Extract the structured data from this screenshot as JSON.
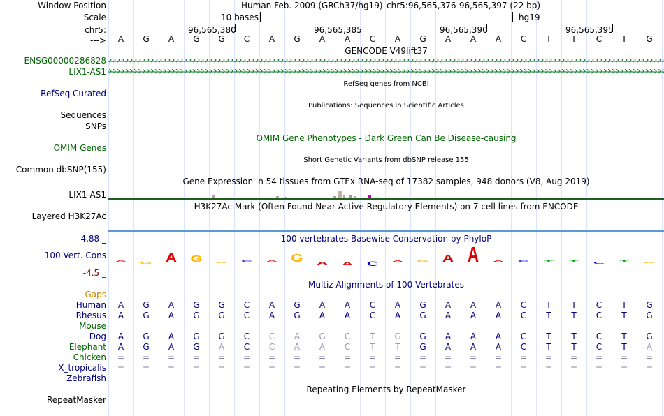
{
  "labels": {
    "window_position": "Window Position",
    "scale": "Scale",
    "chrom": "chr5:",
    "strand": "--->",
    "gene1": "ENSG00000286828",
    "gene2": "LIX1-AS1",
    "refseq": "RefSeq Curated",
    "sequences": "Sequences",
    "snps": "SNPs",
    "omim": "OMIM Genes",
    "dbsnp": "Common dbSNP(155)",
    "gtex": "LIX1-AS1",
    "layered": "Layered H3K27Ac",
    "cons_max": "4.88 _",
    "cons": "100 Vert. Cons",
    "cons_min": "-4.5 _",
    "gaps": "Gaps",
    "human": "Human",
    "rhesus": "Rhesus",
    "mouse": "Mouse",
    "dog": "Dog",
    "elephant": "Elephant",
    "chicken": "Chicken",
    "xtrop": "X_tropicalis",
    "zebrafish": "Zebrafish",
    "repeatmasker": "RepeatMasker"
  },
  "header": {
    "assembly": "Human Feb. 2009 (GRCh37/hg19)",
    "position": "chr5:96,565,376-96,565,397 (22 bp)",
    "scale_text": "10 bases",
    "scale_db": "hg19",
    "ticks": [
      "96,565,380",
      "96,565,385",
      "96,565,390",
      "96,565,395"
    ]
  },
  "bases": [
    "A",
    "G",
    "A",
    "G",
    "G",
    "C",
    "A",
    "G",
    "A",
    "A",
    "C",
    "A",
    "G",
    "A",
    "A",
    "A",
    "C",
    "T",
    "T",
    "C",
    "T",
    "G"
  ],
  "titles": {
    "gencode": "GENCODE V49lift37",
    "refseq": "RefSeq genes from NCBI",
    "publications": "Publications: Sequences in Scientific Articles",
    "omim": "OMIM Gene Phenotypes - Dark Green Can Be Disease-causing",
    "dbsnp": "Short Genetic Variants from dbSNP release 155",
    "gtex": "Gene Expression in 54 tissues from GTEx RNA-seq of 17382 samples, 948 donors (V8, Aug 2019)",
    "h3k27ac": "H3K27Ac Mark (Often Found Near Active Regulatory Elements) on 7 cell lines from ENCODE",
    "phylop": "100 vertebrates Basewise Conservation by PhyloP",
    "multiz": "Multiz Alignments of 100 Vertebrates",
    "repeatmasker": "Repeating Elements by RepeatMasker"
  },
  "alignment": {
    "human": "AGAGGCAGAACAGAAACTTCTG",
    "rhesus": "AGAGGCAGAACAGAAACTTCTG",
    "dog": "AGAGGCCAGCTGGAAACTTCTG",
    "dog_dim": [
      0,
      0,
      0,
      0,
      0,
      0,
      1,
      1,
      1,
      1,
      1,
      1,
      0,
      0,
      0,
      0,
      0,
      0,
      0,
      0,
      0,
      0
    ],
    "elephant": "AGAGACCAACTTGAAACTTCTA",
    "elephant_dim": [
      0,
      0,
      0,
      0,
      1,
      0,
      1,
      1,
      1,
      1,
      1,
      1,
      0,
      0,
      0,
      0,
      0,
      0,
      0,
      0,
      0,
      1
    ],
    "chicken": "======================",
    "xtrop": "======================"
  },
  "conservation": {
    "letters": [
      "A",
      "G",
      "A",
      "G",
      "G",
      "C",
      "A",
      "G",
      "A",
      "A",
      "C",
      "A",
      "G",
      "A",
      "A",
      "A",
      "C",
      "T",
      "T",
      "C",
      "T",
      "G"
    ],
    "values": [
      0.1,
      -0.3,
      1.2,
      0.9,
      -0.1,
      0,
      0.1,
      1.1,
      -0.4,
      -0.5,
      -0.6,
      0.1,
      0,
      1.0,
      2.1,
      0,
      0,
      0.05,
      0.1,
      -0.3,
      0,
      -0.2
    ]
  },
  "colors": {
    "label_blue": "#000080",
    "label_green": "#006400",
    "label_maroon": "#8b0000",
    "gaps_orange": "#cc8800",
    "gene_green": "#0f7d2e",
    "h3k27ac_blue": "#5b9bd5",
    "base_A": "#dd0000",
    "base_C": "#0000cc",
    "base_G": "#ffb300",
    "base_T": "#00aa00"
  }
}
